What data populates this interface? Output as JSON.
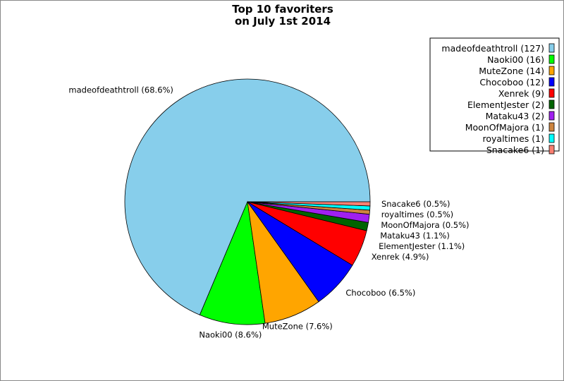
{
  "chart_data": {
    "type": "pie",
    "title": [
      "Top 10 favoriters",
      "on July 1st 2014"
    ],
    "legend_position": "top-right",
    "slices": [
      {
        "name": "madeofdeathtroll",
        "value": 127,
        "percent": "68.6%",
        "color": "#87ceeb"
      },
      {
        "name": "Naoki00",
        "value": 16,
        "percent": "8.6%",
        "color": "#00ff00"
      },
      {
        "name": "MuteZone",
        "value": 14,
        "percent": "7.6%",
        "color": "#ffa500"
      },
      {
        "name": "Chocoboo",
        "value": 12,
        "percent": "6.5%",
        "color": "#0000ff"
      },
      {
        "name": "Xenrek",
        "value": 9,
        "percent": "4.9%",
        "color": "#ff0000"
      },
      {
        "name": "ElementJester",
        "value": 2,
        "percent": "1.1%",
        "color": "#006400"
      },
      {
        "name": "Mataku43",
        "value": 2,
        "percent": "1.1%",
        "color": "#a020f0"
      },
      {
        "name": "MoonOfMajora",
        "value": 1,
        "percent": "0.5%",
        "color": "#cd853f"
      },
      {
        "name": "royaltimes",
        "value": 1,
        "percent": "0.5%",
        "color": "#00ffff"
      },
      {
        "name": "Snacake6",
        "value": 1,
        "percent": "0.5%",
        "color": "#fa8072"
      }
    ]
  }
}
